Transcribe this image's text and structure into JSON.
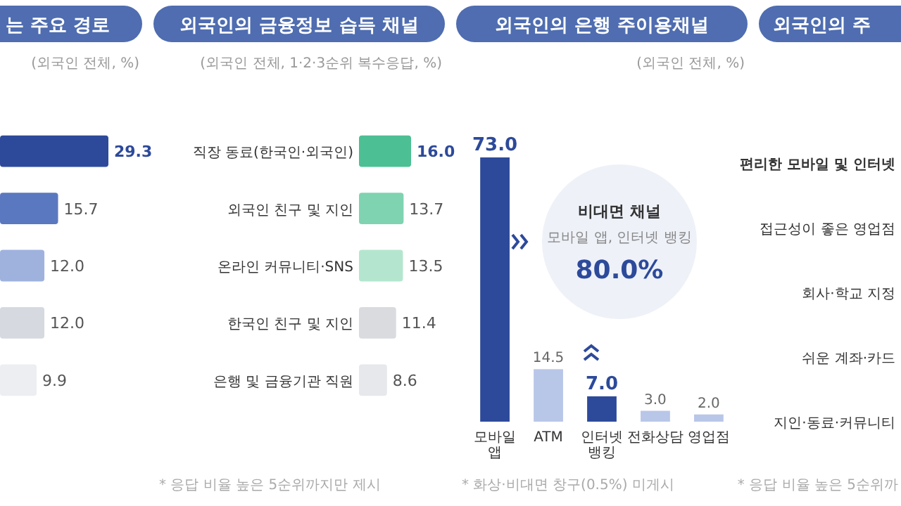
{
  "chart_data": [
    {
      "type": "bar",
      "orientation": "horizontal",
      "title": "는 주요 경로",
      "subtitle": "(외국인 전체, %)",
      "categories": [
        null,
        null,
        null,
        null,
        null
      ],
      "values": [
        29.3,
        15.7,
        12.0,
        12.0,
        9.9
      ],
      "colors": [
        "#2d4a9a",
        "#5a78c0",
        "#9fb2de",
        "#d6d9e0",
        "#eceef2"
      ],
      "value_labels": [
        "29.3",
        "15.7",
        "12.0",
        "12.0",
        "9.9"
      ]
    },
    {
      "type": "bar",
      "orientation": "horizontal",
      "title": "외국인의 금융정보 습득 채널",
      "subtitle": "(외국인 전체, 1·2·3순위 복수응답, %)",
      "categories": [
        "직장 동료(한국인·외국인)",
        "외국인 친구 및 지인",
        "온라인 커뮤니티·SNS",
        "한국인 친구 및 지인",
        "은행 및 금융기관 직원"
      ],
      "values": [
        16.0,
        13.7,
        13.5,
        11.4,
        8.6
      ],
      "colors": [
        "#4dbf94",
        "#7fd3b0",
        "#b4e6cf",
        "#d9dbdf",
        "#e6e8ec"
      ],
      "value_labels": [
        "16.0",
        "13.7",
        "13.5",
        "11.4",
        "8.6"
      ],
      "annotations": [
        "* 응답 비율 높은 5순위까지만 제시"
      ]
    },
    {
      "type": "bar",
      "title": "외국인의 은행 주이용채널",
      "subtitle": "(외국인 전체, %)",
      "categories": [
        "모바일 앱",
        "ATM",
        "인터넷 뱅킹",
        "전화상담",
        "영업점"
      ],
      "values": [
        73.0,
        14.5,
        7.0,
        3.0,
        2.0
      ],
      "colors": [
        "#2d4a9a",
        "#b8c6e8",
        "#2d4a9a",
        "#b8c6e8",
        "#b8c6e8"
      ],
      "value_labels": [
        "73.0",
        "14.5",
        "7.0",
        "3.0",
        "2.0"
      ],
      "annotations": [
        "비대면 채널",
        "모바일 앱, 인터넷 뱅킹",
        "80.0%",
        "* 화상·비대면 창구(0.5%) 미게시"
      ]
    },
    {
      "type": "other",
      "title": "외국인의 주",
      "annotations": [
        "편리한 모바일 및 인터넷",
        "접근성이 좋은 영업점",
        "회사·학교 지정",
        "쉬운 계좌·카드",
        "지인·동료·커뮤니티",
        "* 응답 비율 높은 5순위까"
      ]
    }
  ]
}
